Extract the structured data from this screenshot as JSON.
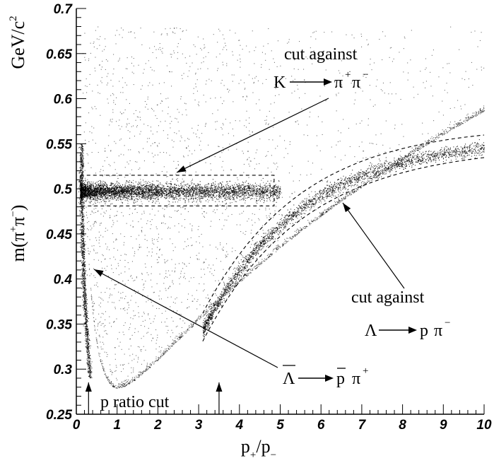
{
  "chart_data": {
    "type": "scatter",
    "title": "",
    "xlim": [
      0,
      10
    ],
    "ylim": [
      0.25,
      0.7
    ],
    "x_ticks": [
      "0",
      "1",
      "2",
      "3",
      "4",
      "5",
      "6",
      "7",
      "8",
      "9",
      "10"
    ],
    "y_ticks": [
      "0.25",
      "0.3",
      "0.35",
      "0.4",
      "0.45",
      "0.5",
      "0.55",
      "0.6",
      "0.65",
      "0.7"
    ],
    "xlabel": "p₊/p₋",
    "ylabel": "m(π⁺π⁻)",
    "y_unit": "GeV/c²",
    "grid": false,
    "series": [
      {
        "band": "K0s",
        "mass": 0.4976,
        "x_range": [
          0.1,
          5.0
        ],
        "density": "high near x≈0.1–1.5, fading to x≈5"
      },
      {
        "band": "Lambda",
        "note": "curved band from (3.1, 0.335) to (10, 0.55)"
      },
      {
        "band": "anti-Lambda",
        "note": "near-vertical band at x≈0.1–0.35 from 0.28 to 0.55"
      },
      {
        "band": "phase-space edge",
        "note": "curve minimum at x≈1, y≈0.279"
      }
    ],
    "k_cut_box": {
      "x": [
        0.1,
        4.85
      ],
      "y": [
        0.481,
        0.515
      ]
    },
    "lambda_cut_curves": "dashed pair around the Lambda band, x from 3.1 to 10",
    "p_ratio_cut": [
      0.3,
      3.5
    ],
    "annotations": {
      "k_cut_line1": "cut against",
      "k_cut_line2_K": "K",
      "k_cut_line2_pi": "π",
      "k_cut_sup_plus": "+",
      "k_cut_sup_minus": "−",
      "lambda_cut_line1": "cut against",
      "lambda_cut_Lambda": "Λ",
      "lambda_cut_p": "p",
      "lambda_cut_pi": "π",
      "lambda_cut_sup_minus": "−",
      "antilambda_Lambda": "Λ",
      "antilambda_p": "p",
      "antilambda_pi": "π",
      "antilambda_sup_plus": "+",
      "p_ratio_label": "p ratio cut"
    },
    "axis_label_parts": {
      "y_prefix": "m(",
      "y_pi1": "π",
      "y_sup1": "+",
      "y_pi2": "π",
      "y_sup2": "−",
      "y_suffix": ")",
      "y_unit_base": "GeV/c",
      "y_unit_sup": "2",
      "x_p1": "p",
      "x_sub1": "+",
      "x_slash": "/p",
      "x_sub2": "−"
    }
  }
}
